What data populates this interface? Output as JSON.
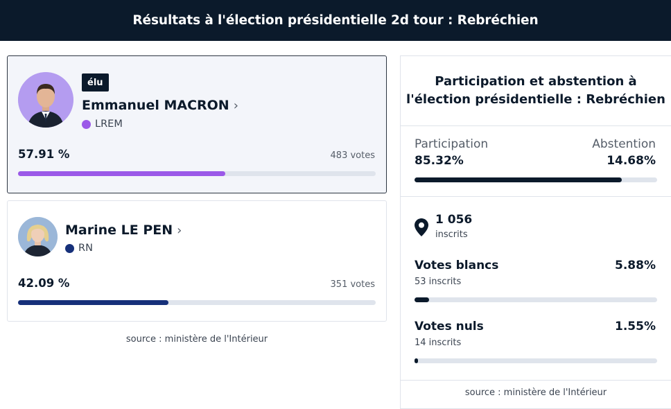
{
  "header": {
    "title": "Résultats à l'élection présidentielle 2d tour : Rebréchien"
  },
  "candidates": [
    {
      "badge": "élu",
      "name": "Emmanuel MACRON",
      "party": "LREM",
      "party_color": "#9b59e8",
      "percent_label": "57.91 %",
      "percent_value": 57.91,
      "votes_label": "483 votes",
      "avatar_icon": "candidate-portrait-icon"
    },
    {
      "name": "Marine LE PEN",
      "party": "RN",
      "party_color": "#16307a",
      "percent_label": "42.09 %",
      "percent_value": 42.09,
      "votes_label": "351 votes",
      "avatar_icon": "candidate-portrait-icon"
    }
  ],
  "source_left": "source : ministère de l'Intérieur",
  "participation_panel": {
    "title": "Participation et abstention à l'élection présidentielle : Rebréchien",
    "participation_label": "Participation",
    "participation_value": "85.32%",
    "participation_percent": 85.32,
    "abstention_label": "Abstention",
    "abstention_value": "14.68%",
    "inscrits_count": "1 056",
    "inscrits_label": "inscrits",
    "inscrits_icon": "map-pin-icon",
    "blancs": {
      "label": "Votes blancs",
      "percent": "5.88%",
      "percent_value": 5.88,
      "sub": "53 inscrits"
    },
    "nuls": {
      "label": "Votes nuls",
      "percent": "1.55%",
      "percent_value": 1.55,
      "sub": "14 inscrits"
    },
    "source": "source : ministère de l'Intérieur"
  },
  "colors": {
    "header_bg": "#0b1a2b",
    "bar_track": "#dfe4ec",
    "participation_bar": "#0b1a2b"
  }
}
